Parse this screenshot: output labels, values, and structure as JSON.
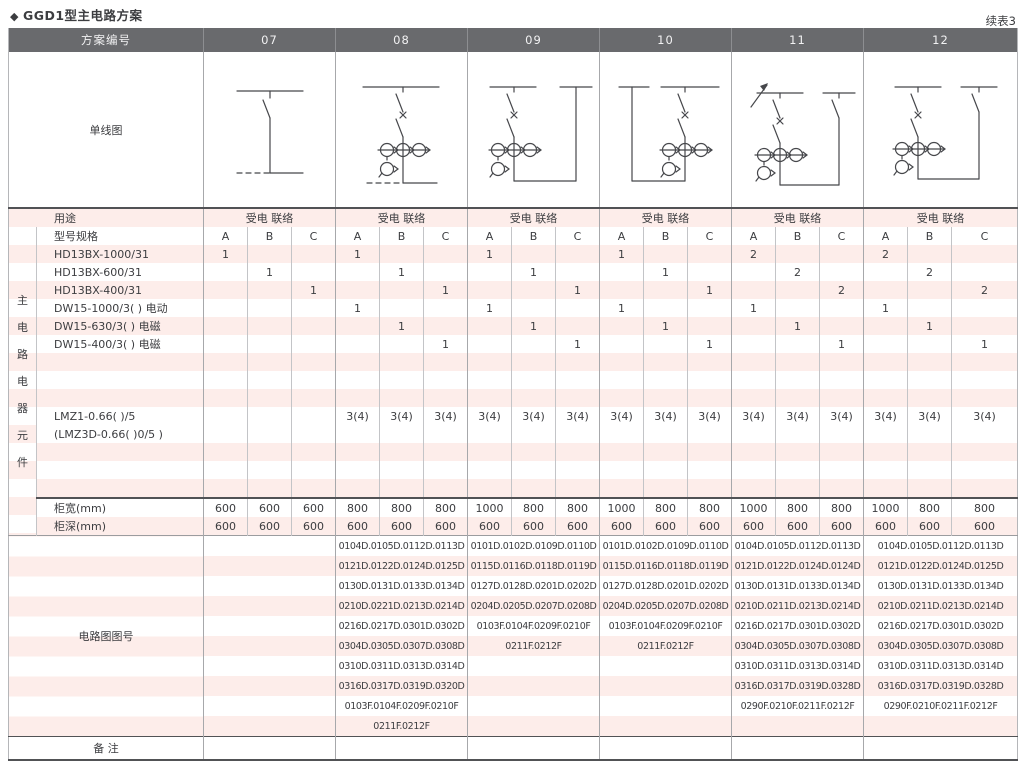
{
  "page": {
    "title": "GGD1型主电路方案",
    "continuation_note": "续表3"
  },
  "colors": {
    "header_gray": "#696a6d",
    "stripe_pink": "#fdedea",
    "heavy_line": "#515255",
    "light_line": "#c3c4c7",
    "text": "#3c3d40"
  },
  "table": {
    "header": {
      "label": "方案编号",
      "schemes": [
        "07",
        "08",
        "09",
        "10",
        "11",
        "12"
      ]
    },
    "diagram_row_label": "单线图",
    "diagrams": [
      {
        "scheme": "07",
        "alt": "disconnector feeder to dashed tie bus"
      },
      {
        "scheme": "08",
        "alt": "disconnector, breaker, 3 CTs and meter CT, dashed tie bus"
      },
      {
        "scheme": "09",
        "alt": "disconnector, breaker, CTs, tie loop to right busbar"
      },
      {
        "scheme": "10",
        "alt": "left busbar riser, disconnector, breaker, CTs, tie loop"
      },
      {
        "scheme": "11",
        "alt": "incoming arrow, disconnector, breaker, CTs, tie loop to right disconnector"
      },
      {
        "scheme": "12",
        "alt": "disconnector, breaker, CTs, tie loop to right disconnector"
      }
    ],
    "left_vertical_label": "主电路电器元件",
    "grid_rows": [
      {
        "label": "用途",
        "merged": true,
        "shaded": true,
        "values": [
          "受电 联络",
          "受电 联络",
          "受电 联络",
          "受电 联络",
          "受电 联络",
          "受电 联络"
        ]
      },
      {
        "label": "型号规格",
        "shaded": false,
        "values": [
          "A",
          "B",
          "C",
          "A",
          "B",
          "C",
          "A",
          "B",
          "C",
          "A",
          "B",
          "C",
          "A",
          "B",
          "C",
          "A",
          "B",
          "C"
        ]
      },
      {
        "label": "HD13BX-1000/31",
        "shaded": true,
        "values": [
          "1",
          "",
          "",
          "1",
          "",
          "",
          "1",
          "",
          "",
          "1",
          "",
          "",
          "2",
          "",
          "",
          "2",
          "",
          ""
        ]
      },
      {
        "label": "HD13BX-600/31",
        "shaded": false,
        "values": [
          "",
          "1",
          "",
          "",
          "1",
          "",
          "",
          "1",
          "",
          "",
          "1",
          "",
          "",
          "2",
          "",
          "",
          "2",
          ""
        ]
      },
      {
        "label": "HD13BX-400/31",
        "shaded": true,
        "values": [
          "",
          "",
          "1",
          "",
          "",
          "1",
          "",
          "",
          "1",
          "",
          "",
          "1",
          "",
          "",
          "2",
          "",
          "",
          "2"
        ]
      },
      {
        "label": "DW15-1000/3( )  电动",
        "shaded": false,
        "values": [
          "",
          "",
          "",
          "1",
          "",
          "",
          "1",
          "",
          "",
          "1",
          "",
          "",
          "1",
          "",
          "",
          "1",
          "",
          ""
        ]
      },
      {
        "label": "DW15-630/3( )  电磁",
        "shaded": true,
        "values": [
          "",
          "",
          "",
          "",
          "1",
          "",
          "",
          "1",
          "",
          "",
          "1",
          "",
          "",
          "1",
          "",
          "",
          "1",
          ""
        ]
      },
      {
        "label": "DW15-400/3( )  电磁",
        "shaded": false,
        "values": [
          "",
          "",
          "",
          "",
          "",
          "1",
          "",
          "",
          "1",
          "",
          "",
          "1",
          "",
          "",
          "1",
          "",
          "",
          "1"
        ]
      },
      {
        "label": "",
        "shaded": true,
        "values": [
          "",
          "",
          "",
          "",
          "",
          "",
          "",
          "",
          "",
          "",
          "",
          "",
          "",
          "",
          "",
          "",
          "",
          ""
        ]
      },
      {
        "label": "",
        "shaded": false,
        "values": [
          "",
          "",
          "",
          "",
          "",
          "",
          "",
          "",
          "",
          "",
          "",
          "",
          "",
          "",
          "",
          "",
          "",
          ""
        ]
      },
      {
        "label": "",
        "shaded": true,
        "values": [
          "",
          "",
          "",
          "",
          "",
          "",
          "",
          "",
          "",
          "",
          "",
          "",
          "",
          "",
          "",
          "",
          "",
          ""
        ]
      },
      {
        "label": "LMZ1-0.66( )/5",
        "shaded": false,
        "values": [
          "",
          "",
          "",
          "3(4)",
          "3(4)",
          "3(4)",
          "3(4)",
          "3(4)",
          "3(4)",
          "3(4)",
          "3(4)",
          "3(4)",
          "3(4)",
          "3(4)",
          "3(4)",
          "3(4)",
          "3(4)",
          "3(4)"
        ]
      },
      {
        "label": "(LMZ3D-0.66( )0/5 )",
        "shaded": false,
        "values": [
          "",
          "",
          "",
          "",
          "",
          "",
          "",
          "",
          "",
          "",
          "",
          "",
          "",
          "",
          "",
          "",
          "",
          ""
        ]
      },
      {
        "label": "",
        "shaded": true,
        "values": [
          "",
          "",
          "",
          "",
          "",
          "",
          "",
          "",
          "",
          "",
          "",
          "",
          "",
          "",
          "",
          "",
          "",
          ""
        ]
      },
      {
        "label": "",
        "shaded": false,
        "values": [
          "",
          "",
          "",
          "",
          "",
          "",
          "",
          "",
          "",
          "",
          "",
          "",
          "",
          "",
          "",
          "",
          "",
          ""
        ]
      },
      {
        "label": "",
        "shaded": true,
        "values": [
          "",
          "",
          "",
          "",
          "",
          "",
          "",
          "",
          "",
          "",
          "",
          "",
          "",
          "",
          "",
          "",
          "",
          ""
        ]
      },
      {
        "label": "柜宽(mm)",
        "shaded": false,
        "values": [
          "600",
          "600",
          "600",
          "800",
          "800",
          "800",
          "1000",
          "800",
          "800",
          "1000",
          "800",
          "800",
          "1000",
          "800",
          "800",
          "1000",
          "800",
          "800"
        ]
      },
      {
        "label": "柜深(mm)",
        "shaded": true,
        "values": [
          "600",
          "600",
          "600",
          "600",
          "600",
          "600",
          "600",
          "600",
          "600",
          "600",
          "600",
          "600",
          "600",
          "600",
          "600",
          "600",
          "600",
          "600"
        ]
      }
    ],
    "drawing_numbers": {
      "label": "电路图图号",
      "schemes": [
        {
          "scheme": "07",
          "lines": []
        },
        {
          "scheme": "08",
          "lines": [
            "0104D.0105D.0112D.0113D",
            "0121D.0122D.0124D.0125D",
            "0130D.0131D.0133D.0134D",
            "0210D.0221D.0213D.0214D",
            "0216D.0217D.0301D.0302D",
            "0304D.0305D.0307D.0308D",
            "0310D.0311D.0313D.0314D",
            "0316D.0317D.0319D.0320D",
            "0103F.0104F.0209F.0210F",
            "0211F.0212F"
          ]
        },
        {
          "scheme": "09",
          "lines": [
            "0101D.0102D.0109D.0110D",
            "0115D.0116D.0118D.0119D",
            "0127D.0128D.0201D.0202D",
            "0204D.0205D.0207D.0208D",
            "0103F.0104F.0209F.0210F",
            "0211F.0212F"
          ]
        },
        {
          "scheme": "10",
          "lines": [
            "0101D.0102D.0109D.0110D",
            "0115D.0116D.0118D.0119D",
            "0127D.0128D.0201D.0202D",
            "0204D.0205D.0207D.0208D",
            "0103F.0104F.0209F.0210F",
            "0211F.0212F"
          ]
        },
        {
          "scheme": "11",
          "lines": [
            "0104D.0105D.0112D.0113D",
            "0121D.0122D.0124D.0124D",
            "0130D.0131D.0133D.0134D",
            "0210D.0211D.0213D.0214D",
            "0216D.0217D.0301D.0302D",
            "0304D.0305D.0307D.0308D",
            "0310D.0311D.0313D.0314D",
            "0316D.0317D.0319D.0328D",
            "0290F.0210F.0211F.0212F"
          ]
        },
        {
          "scheme": "12",
          "lines": [
            "0104D.0105D.0112D.0113D",
            "0121D.0122D.0124D.0125D",
            "0130D.0131D.0133D.0134D",
            "0210D.0211D.0213D.0214D",
            "0216D.0217D.0301D.0302D",
            "0304D.0305D.0307D.0308D",
            "0310D.0311D.0313D.0314D",
            "0316D.0317D.0319D.0328D",
            "0290F.0210F.0211F.0212F"
          ]
        }
      ]
    },
    "remarks_row": {
      "label": "备 注"
    }
  }
}
